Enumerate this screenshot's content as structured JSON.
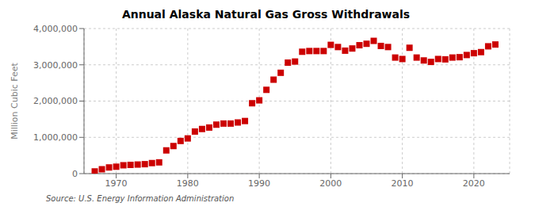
{
  "chart_data": {
    "type": "scatter",
    "title": "Annual Alaska Natural Gas Gross Withdrawals",
    "y_label": "Million Cubic Feet",
    "annotations": [
      "Source: U.S. Energy Information Administration"
    ],
    "x": [
      1967,
      1968,
      1969,
      1970,
      1971,
      1972,
      1973,
      1974,
      1975,
      1976,
      1977,
      1978,
      1979,
      1980,
      1981,
      1982,
      1983,
      1984,
      1985,
      1986,
      1987,
      1988,
      1989,
      1990,
      1991,
      1992,
      1993,
      1994,
      1995,
      1996,
      1997,
      1998,
      1999,
      2000,
      2001,
      2002,
      2003,
      2004,
      2005,
      2006,
      2007,
      2008,
      2009,
      2010,
      2011,
      2012,
      2013,
      2014,
      2015,
      2016,
      2017,
      2018,
      2019,
      2020,
      2021,
      2022,
      2023
    ],
    "values": [
      60000,
      120000,
      170000,
      190000,
      230000,
      240000,
      250000,
      260000,
      290000,
      310000,
      640000,
      760000,
      900000,
      970000,
      1160000,
      1230000,
      1270000,
      1350000,
      1380000,
      1380000,
      1410000,
      1450000,
      1940000,
      2020000,
      2310000,
      2590000,
      2780000,
      3060000,
      3090000,
      3360000,
      3380000,
      3380000,
      3380000,
      3550000,
      3490000,
      3390000,
      3450000,
      3540000,
      3580000,
      3660000,
      3520000,
      3490000,
      3200000,
      3160000,
      3470000,
      3200000,
      3120000,
      3080000,
      3160000,
      3150000,
      3200000,
      3210000,
      3270000,
      3320000,
      3350000,
      3510000,
      3560000
    ],
    "color": "#cc0000",
    "marker": "square",
    "grid": true,
    "xlim": [
      1965.5,
      2025
    ],
    "xticks": [
      1970,
      1980,
      1990,
      2000,
      2010,
      2020
    ],
    "ylim": [
      0,
      4000000
    ],
    "yticks": [
      0,
      {
        "value": 1000000,
        "label": "1,000,000"
      },
      {
        "value": 2000000,
        "label": "2,000,000"
      },
      {
        "value": 3000000,
        "label": "3,000,000"
      },
      {
        "value": 4000000,
        "label": "4,000,000"
      }
    ]
  }
}
